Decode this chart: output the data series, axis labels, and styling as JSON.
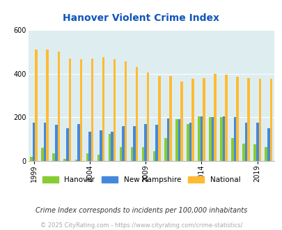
{
  "title": "Hanover Violent Crime Index",
  "years": [
    1999,
    2000,
    2001,
    2002,
    2003,
    2004,
    2005,
    2006,
    2007,
    2008,
    2009,
    2010,
    2011,
    2012,
    2013,
    2014,
    2015,
    2016,
    2017,
    2018,
    2019,
    2020
  ],
  "hanover": [
    20,
    60,
    35,
    10,
    5,
    35,
    30,
    125,
    65,
    65,
    65,
    45,
    105,
    190,
    170,
    205,
    200,
    200,
    105,
    80,
    75,
    65
  ],
  "new_hampshire": [
    175,
    175,
    165,
    150,
    170,
    135,
    140,
    135,
    160,
    160,
    170,
    165,
    195,
    190,
    175,
    205,
    200,
    205,
    200,
    175,
    175,
    150
  ],
  "national": [
    510,
    510,
    500,
    470,
    465,
    470,
    475,
    465,
    455,
    430,
    405,
    390,
    390,
    365,
    375,
    380,
    400,
    395,
    385,
    380,
    375,
    375
  ],
  "bar_width": 0.22,
  "ylim": [
    0,
    600
  ],
  "yticks": [
    0,
    200,
    400,
    600
  ],
  "color_hanover": "#88cc33",
  "color_nh": "#4488dd",
  "color_national": "#ffbb33",
  "plot_bg": "#deeef0",
  "grid_color": "#ffffff",
  "title_color": "#1155bb",
  "note_color": "#333333",
  "footer_color": "#aaaaaa",
  "note_text": "Crime Index corresponds to incidents per 100,000 inhabitants",
  "footer_text": "© 2025 CityRating.com - https://www.cityrating.com/crime-statistics/",
  "legend_labels": [
    "Hanover",
    "New Hampshire",
    "National"
  ],
  "tick_years": [
    1999,
    2004,
    2009,
    2014,
    2019
  ]
}
